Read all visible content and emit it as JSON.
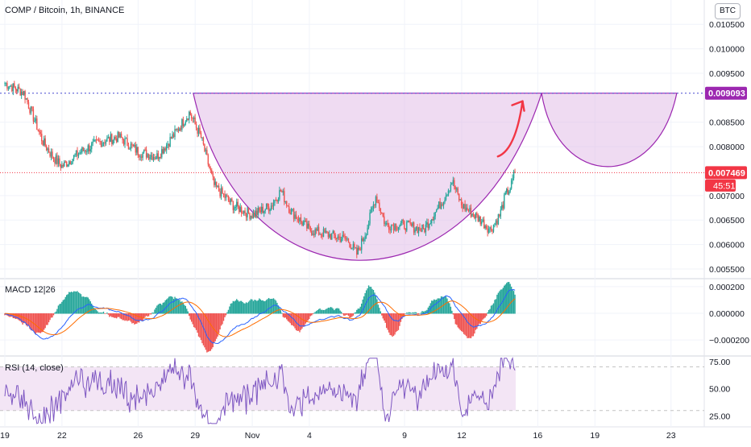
{
  "header": {
    "title": "COMP / Bitcoin, 1h, BINANCE",
    "currency_button": "BTC"
  },
  "colors": {
    "up": "#26a69a",
    "down": "#ef5350",
    "pattern_fill": "#e1bee7",
    "pattern_stroke": "#9c27b0",
    "resistance": "#5c5fd6",
    "price_line": "#f23645",
    "arrow": "#f23645",
    "macd_line": "#2962ff",
    "signal_line": "#ff6d00",
    "rsi_line": "#7e57c2",
    "rsi_band": "#f3e5f5"
  },
  "price_labels": {
    "resistance": "0.009093",
    "last": "0.007469",
    "countdown": "45:51"
  },
  "chart_data": [
    {
      "type": "line",
      "title": "COMP / Bitcoin, 1h, BINANCE",
      "yunit": "BTC",
      "ylim": [
        0.0055,
        0.0108
      ],
      "y_ticks": [
        "0.010500",
        "0.010000",
        "0.009500",
        "0.008500",
        "0.008000",
        "0.007000",
        "0.006500",
        "0.006000",
        "0.005500"
      ],
      "x_ticks": [
        "19",
        "22",
        "26",
        "29",
        "Nov",
        "4",
        "9",
        "12",
        "16",
        "19",
        "23"
      ],
      "x_tick_days": [
        19,
        22,
        26,
        29,
        32,
        35,
        40,
        43,
        47,
        50,
        54
      ],
      "x_range_days": [
        19,
        56
      ],
      "series": [
        {
          "x_days": [
            19,
            20,
            21,
            21.5,
            22,
            23,
            24,
            25,
            26,
            27,
            28,
            28.7,
            29.3,
            30,
            31,
            32,
            33,
            33.5,
            34,
            35,
            36,
            37,
            37.5,
            38,
            38.5,
            39,
            40,
            41,
            42,
            42.5,
            43,
            44,
            44.5,
            45,
            45.3,
            45.6,
            45.8
          ],
          "close": [
            0.0093,
            0.0091,
            0.0081,
            0.0078,
            0.0076,
            0.0079,
            0.0081,
            0.0082,
            0.0079,
            0.0078,
            0.0083,
            0.0087,
            0.0082,
            0.0072,
            0.0068,
            0.0066,
            0.0068,
            0.0071,
            0.0067,
            0.0063,
            0.0062,
            0.0061,
            0.0058,
            0.0063,
            0.007,
            0.0064,
            0.0064,
            0.0063,
            0.0069,
            0.0073,
            0.0068,
            0.0065,
            0.0063,
            0.0066,
            0.007,
            0.0072,
            0.0075
          ]
        }
      ],
      "annotations": {
        "resistance": 0.009093,
        "last_price": 0.007469,
        "cup_bottom": 0.00561,
        "handle_bottom": 0.00775
      }
    },
    {
      "type": "line",
      "title": "MACD 12|26",
      "ylim": [
        -0.00032,
        0.00026
      ],
      "y_ticks": [
        "0.000200",
        "0.000000",
        "−0.000200"
      ]
    },
    {
      "type": "line",
      "title": "RSI (14, close)",
      "ylim": [
        15,
        80
      ],
      "y_ticks": [
        "75.00",
        "50.00",
        "25.00"
      ],
      "band": [
        30,
        70
      ]
    }
  ]
}
